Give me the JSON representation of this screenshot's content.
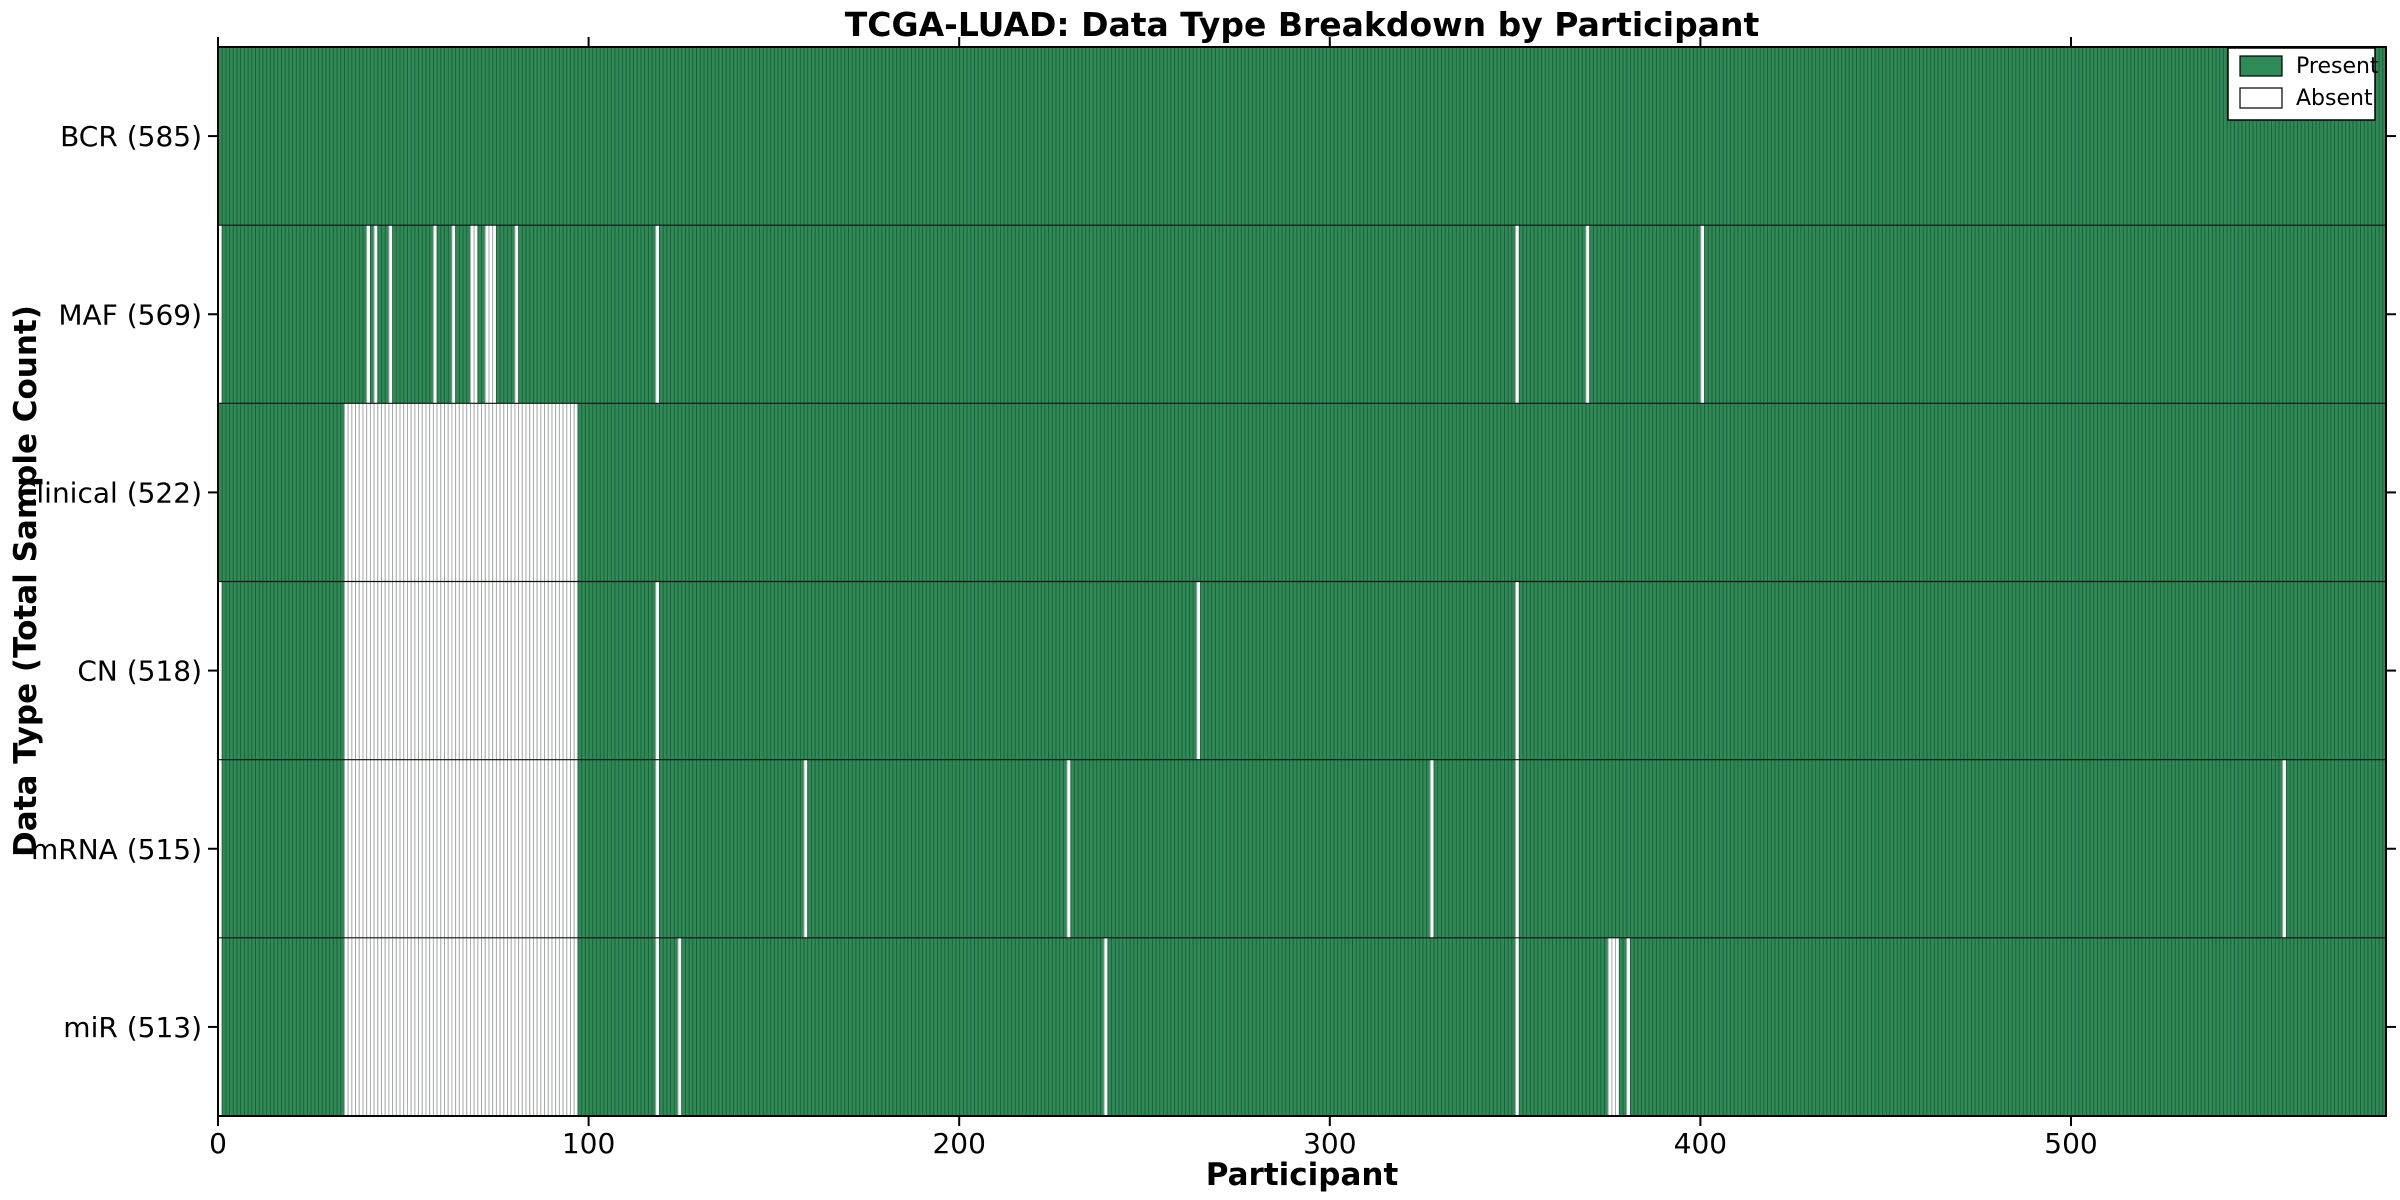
{
  "chart_data": {
    "type": "heatmap",
    "title": "TCGA-LUAD: Data Type Breakdown by Participant",
    "xlabel": "Participant",
    "ylabel": "Data Type (Total Sample Count)",
    "n_participants": 585,
    "x_axis_range": [
      0,
      585
    ],
    "x_ticks": [
      0,
      100,
      200,
      300,
      400,
      500
    ],
    "grid": false,
    "legend_position": "upper right",
    "legend": [
      {
        "label": "Present",
        "color": "#2E8B57"
      },
      {
        "label": "Absent",
        "color": "#FFFFFF"
      }
    ],
    "colors": {
      "present": "#2E8B57",
      "absent": "#FFFFFF",
      "bar_edge": "rgba(0,0,0,0.35)",
      "spine": "#000000"
    },
    "rows": [
      {
        "label": "BCR (585)",
        "data_type": "BCR",
        "present_count": 585,
        "absent_indices": [],
        "absent_ranges": []
      },
      {
        "label": "MAF (569)",
        "data_type": "MAF",
        "present_count": 569,
        "absent_indices": [
          0,
          40,
          42,
          46,
          58,
          63,
          68,
          69,
          72,
          73,
          74,
          80,
          118,
          350,
          369,
          400
        ],
        "absent_ranges": []
      },
      {
        "label": "Clinical (522)",
        "data_type": "Clinical",
        "present_count": 522,
        "absent_indices": [],
        "absent_ranges": [
          [
            34,
            96
          ]
        ]
      },
      {
        "label": "CN (518)",
        "data_type": "CN",
        "present_count": 518,
        "absent_indices": [
          0,
          118,
          264,
          350
        ],
        "absent_ranges": [
          [
            34,
            96
          ]
        ]
      },
      {
        "label": "mRNA (515)",
        "data_type": "mRNA",
        "present_count": 515,
        "absent_indices": [
          0,
          118,
          158,
          229,
          327,
          350,
          557
        ],
        "absent_ranges": [
          [
            34,
            96
          ]
        ]
      },
      {
        "label": "miR (513)",
        "data_type": "miR",
        "present_count": 513,
        "absent_indices": [
          0,
          118,
          124,
          239,
          350,
          375,
          376,
          377,
          380
        ],
        "absent_ranges": [
          [
            34,
            96
          ]
        ]
      }
    ]
  }
}
